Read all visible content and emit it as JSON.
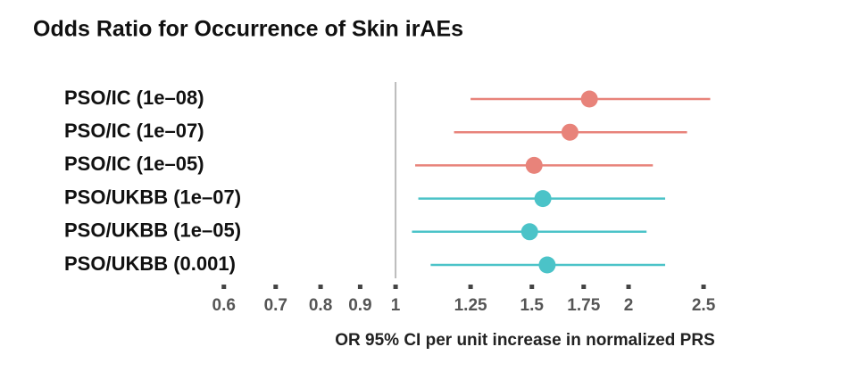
{
  "chart_data": {
    "type": "forest",
    "title": "Odds Ratio for Occurrence of Skin irAEs",
    "categories": [
      "PSO/IC (1e–08)",
      "PSO/IC (1e–07)",
      "PSO/IC (1e–05)",
      "PSO/UKBB (1e–07)",
      "PSO/UKBB (1e–05)",
      "PSO/UKBB (0.001)"
    ],
    "values": [
      1.78,
      1.68,
      1.51,
      1.55,
      1.49,
      1.57
    ],
    "lower": [
      1.25,
      1.19,
      1.06,
      1.07,
      1.05,
      1.11
    ],
    "upper": [
      2.55,
      2.38,
      2.15,
      2.23,
      2.11,
      2.23
    ],
    "colors": [
      "#e8837a",
      "#e8837a",
      "#e8837a",
      "#4bc3c8",
      "#4bc3c8",
      "#4bc3c8"
    ],
    "x_label": "OR 95% CI per unit increase in normalized PRS",
    "xscale": "log",
    "xlim": [
      0.58,
      2.65
    ],
    "xticks": [
      0.6,
      0.7,
      0.8,
      0.9,
      1,
      1.25,
      1.5,
      1.75,
      2,
      2.5
    ],
    "ref_line": 1
  }
}
